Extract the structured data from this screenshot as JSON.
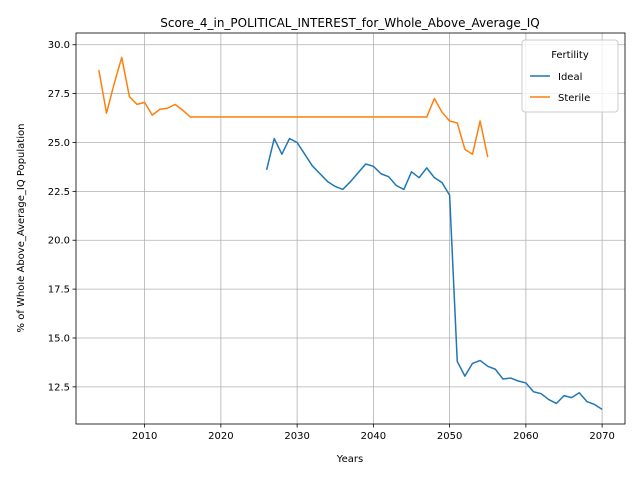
{
  "chart_data": {
    "type": "line",
    "title": "Score_4_in_POLITICAL_INTEREST_for_Whole_Above_Average_IQ",
    "xlabel": "Years",
    "ylabel": "% of Whole Above_Average_IQ Population",
    "xlim": [
      2001,
      2073
    ],
    "ylim": [
      10.6,
      30.6
    ],
    "xticks": [
      2010,
      2020,
      2030,
      2040,
      2050,
      2060,
      2070
    ],
    "yticks": [
      12.5,
      15.0,
      17.5,
      20.0,
      22.5,
      25.0,
      27.5,
      30.0
    ],
    "grid": true,
    "legend": {
      "title": "Fertility",
      "placement": "top-right"
    },
    "series": [
      {
        "name": "Ideal",
        "color": "#1f77b4",
        "x": [
          2026,
          2027,
          2028,
          2029,
          2030,
          2031,
          2032,
          2033,
          2034,
          2035,
          2036,
          2037,
          2038,
          2039,
          2040,
          2041,
          2042,
          2043,
          2044,
          2045,
          2046,
          2047,
          2048,
          2049,
          2050,
          2051,
          2052,
          2053,
          2054,
          2055,
          2056,
          2057,
          2058,
          2059,
          2060,
          2061,
          2062,
          2063,
          2064,
          2065,
          2066,
          2067,
          2068,
          2069,
          2070
        ],
        "y": [
          23.6,
          25.2,
          24.4,
          25.2,
          25.0,
          24.4,
          23.8,
          23.4,
          23.0,
          22.75,
          22.6,
          23.0,
          23.45,
          23.9,
          23.78,
          23.4,
          23.25,
          22.8,
          22.6,
          23.5,
          23.2,
          23.7,
          23.2,
          22.95,
          22.3,
          13.8,
          13.05,
          13.7,
          13.85,
          13.55,
          13.4,
          12.9,
          12.95,
          12.8,
          12.7,
          12.25,
          12.15,
          11.85,
          11.65,
          12.05,
          11.95,
          12.2,
          11.75,
          11.6,
          11.35
        ]
      },
      {
        "name": "Sterile",
        "color": "#ff7f0e",
        "x": [
          2004,
          2005,
          2006,
          2007,
          2008,
          2009,
          2010,
          2011,
          2012,
          2013,
          2014,
          2015,
          2016,
          2017,
          2018,
          2019,
          2020,
          2021,
          2022,
          2023,
          2024,
          2025,
          2026,
          2027,
          2028,
          2029,
          2030,
          2031,
          2032,
          2033,
          2034,
          2035,
          2036,
          2037,
          2038,
          2039,
          2040,
          2041,
          2042,
          2043,
          2044,
          2045,
          2046,
          2047,
          2048,
          2049,
          2050,
          2051,
          2052,
          2053,
          2054,
          2055
        ],
        "y": [
          28.7,
          26.5,
          28.0,
          29.35,
          27.35,
          26.95,
          27.05,
          26.4,
          26.7,
          26.75,
          26.95,
          26.65,
          26.3,
          26.3,
          26.3,
          26.3,
          26.3,
          26.3,
          26.3,
          26.3,
          26.3,
          26.3,
          26.3,
          26.3,
          26.3,
          26.3,
          26.3,
          26.3,
          26.3,
          26.3,
          26.3,
          26.3,
          26.3,
          26.3,
          26.3,
          26.3,
          26.3,
          26.3,
          26.3,
          26.3,
          26.3,
          26.3,
          26.3,
          26.3,
          27.25,
          26.55,
          26.1,
          26.0,
          24.65,
          24.4,
          26.1,
          24.25
        ]
      }
    ]
  }
}
